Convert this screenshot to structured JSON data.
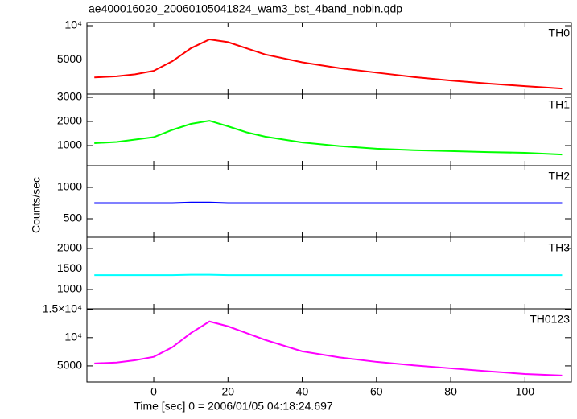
{
  "title": "ae400016020_20060105041824_wam3_bst_4band_nobin.qdp",
  "x_label": "Time [sec] 0 = 2006/01/05 04:18:24.697",
  "y_label": "Counts/sec",
  "x": [
    -16,
    -10,
    -5,
    0,
    5,
    10,
    15,
    20,
    25,
    30,
    40,
    50,
    60,
    70,
    80,
    90,
    100,
    110
  ],
  "xlim": [
    -18,
    112.5
  ],
  "xticks": [
    0,
    20,
    40,
    60,
    80,
    100
  ],
  "chart_data": [
    {
      "type": "line",
      "series": [
        {
          "name": "TH0",
          "color": "#ff0000",
          "values": [
            2440,
            2600,
            2900,
            3400,
            4800,
            6700,
            8000,
            7600,
            6700,
            5800,
            4650,
            3800,
            3140,
            2500,
            1980,
            1550,
            1160,
            810
          ]
        }
      ],
      "ylim": [
        0,
        10470
      ],
      "yticks": [
        5000,
        {
          "value": 10000,
          "label": "10⁴"
        }
      ]
    },
    {
      "type": "line",
      "series": [
        {
          "name": "TH1",
          "color": "#00ff00",
          "values": [
            1100,
            1150,
            1250,
            1350,
            1650,
            1900,
            2030,
            1800,
            1550,
            1370,
            1130,
            980,
            870,
            810,
            770,
            730,
            700,
            630
          ]
        }
      ],
      "ylim": [
        167,
        3133
      ],
      "yticks": [
        1000,
        2000,
        3000
      ]
    },
    {
      "type": "line",
      "series": [
        {
          "name": "TH2",
          "color": "#0000ff",
          "values": [
            750,
            750,
            750,
            750,
            750,
            760,
            760,
            750,
            750,
            750,
            750,
            750,
            750,
            750,
            750,
            750,
            750,
            750
          ]
        }
      ],
      "ylim": [
        205,
        1346
      ],
      "yticks": [
        500,
        1000
      ]
    },
    {
      "type": "line",
      "series": [
        {
          "name": "TH3",
          "color": "#00ffff",
          "values": [
            1350,
            1350,
            1350,
            1350,
            1350,
            1360,
            1360,
            1350,
            1350,
            1350,
            1350,
            1350,
            1350,
            1350,
            1350,
            1350,
            1350,
            1350
          ]
        }
      ],
      "ylim": [
        529,
        2275
      ],
      "yticks": [
        1000,
        1500,
        2000
      ]
    },
    {
      "type": "line",
      "series": [
        {
          "name": "TH0123",
          "color": "#ff00ff",
          "values": [
            5430,
            5600,
            6000,
            6600,
            8300,
            10800,
            12860,
            12000,
            10800,
            9600,
            7570,
            6500,
            5710,
            5100,
            4570,
            4050,
            3570,
            3290
          ]
        }
      ],
      "ylim": [
        2140,
        15100
      ],
      "yticks": [
        5000,
        {
          "value": 10000,
          "label": "10⁴"
        },
        {
          "value": 15000,
          "label": "1.5×10⁴"
        }
      ]
    }
  ]
}
